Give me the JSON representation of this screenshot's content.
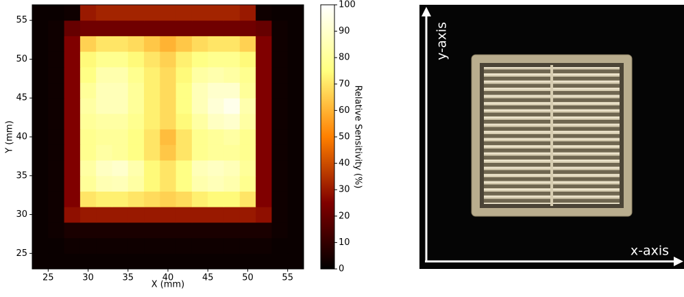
{
  "chart_data": {
    "type": "heatmap",
    "colormap": "afmhot",
    "x": [
      24,
      26,
      28,
      30,
      32,
      34,
      36,
      38,
      40,
      42,
      44,
      46,
      48,
      50,
      52,
      54,
      56
    ],
    "y": [
      24,
      26,
      28,
      30,
      32,
      34,
      36,
      38,
      40,
      42,
      44,
      46,
      48,
      50,
      52,
      54,
      56
    ],
    "values": [
      [
        2,
        2,
        2,
        2,
        2,
        2,
        2,
        2,
        2,
        2,
        2,
        2,
        2,
        2,
        2,
        2,
        2
      ],
      [
        2,
        2,
        3,
        3,
        3,
        3,
        3,
        3,
        3,
        3,
        3,
        3,
        3,
        3,
        3,
        2,
        2
      ],
      [
        2,
        3,
        5,
        5,
        5,
        5,
        5,
        5,
        5,
        5,
        5,
        5,
        5,
        5,
        5,
        3,
        2
      ],
      [
        2,
        3,
        28,
        30,
        30,
        30,
        30,
        30,
        30,
        30,
        30,
        30,
        30,
        30,
        28,
        3,
        2
      ],
      [
        2,
        3,
        25,
        70,
        72,
        72,
        70,
        68,
        66,
        68,
        72,
        74,
        74,
        70,
        25,
        3,
        2
      ],
      [
        2,
        3,
        25,
        80,
        85,
        86,
        82,
        74,
        70,
        76,
        84,
        86,
        84,
        78,
        25,
        3,
        2
      ],
      [
        2,
        3,
        25,
        82,
        88,
        90,
        84,
        74,
        70,
        76,
        86,
        88,
        86,
        80,
        25,
        3,
        2
      ],
      [
        2,
        3,
        25,
        78,
        82,
        80,
        76,
        70,
        64,
        70,
        78,
        80,
        80,
        78,
        25,
        3,
        2
      ],
      [
        2,
        3,
        25,
        78,
        80,
        80,
        76,
        70,
        62,
        70,
        78,
        80,
        82,
        78,
        25,
        3,
        2
      ],
      [
        2,
        3,
        25,
        80,
        82,
        82,
        78,
        72,
        68,
        74,
        82,
        88,
        90,
        82,
        25,
        3,
        2
      ],
      [
        2,
        3,
        25,
        82,
        86,
        86,
        80,
        72,
        68,
        76,
        86,
        92,
        96,
        84,
        25,
        3,
        2
      ],
      [
        2,
        3,
        25,
        80,
        86,
        86,
        80,
        72,
        68,
        76,
        86,
        90,
        90,
        80,
        25,
        3,
        2
      ],
      [
        2,
        3,
        25,
        76,
        84,
        84,
        78,
        72,
        68,
        74,
        82,
        84,
        82,
        78,
        25,
        3,
        2
      ],
      [
        2,
        3,
        25,
        74,
        78,
        78,
        74,
        70,
        66,
        72,
        76,
        78,
        78,
        74,
        25,
        3,
        2
      ],
      [
        2,
        3,
        25,
        66,
        70,
        70,
        68,
        64,
        60,
        64,
        68,
        70,
        70,
        66,
        25,
        3,
        2
      ],
      [
        2,
        3,
        20,
        22,
        22,
        22,
        22,
        22,
        22,
        22,
        22,
        22,
        22,
        22,
        20,
        3,
        2
      ],
      [
        2,
        2,
        3,
        30,
        32,
        32,
        32,
        32,
        32,
        32,
        32,
        32,
        32,
        30,
        3,
        2,
        2
      ]
    ],
    "xlim": [
      23,
      57
    ],
    "ylim": [
      23,
      57
    ],
    "xticks": [
      25,
      30,
      35,
      40,
      45,
      50,
      55
    ],
    "yticks": [
      25,
      30,
      35,
      40,
      45,
      50,
      55
    ],
    "x_label": "X (mm)",
    "y_label": "Y (mm)",
    "clim": [
      0,
      100
    ],
    "colorbar_ticks": [
      0,
      10,
      20,
      30,
      40,
      50,
      60,
      70,
      80,
      90,
      100
    ],
    "colorbar_label": "Relative Sensitivity (%)"
  },
  "photo": {
    "x_axis_label": "x-axis",
    "y_axis_label": "y-axis"
  }
}
